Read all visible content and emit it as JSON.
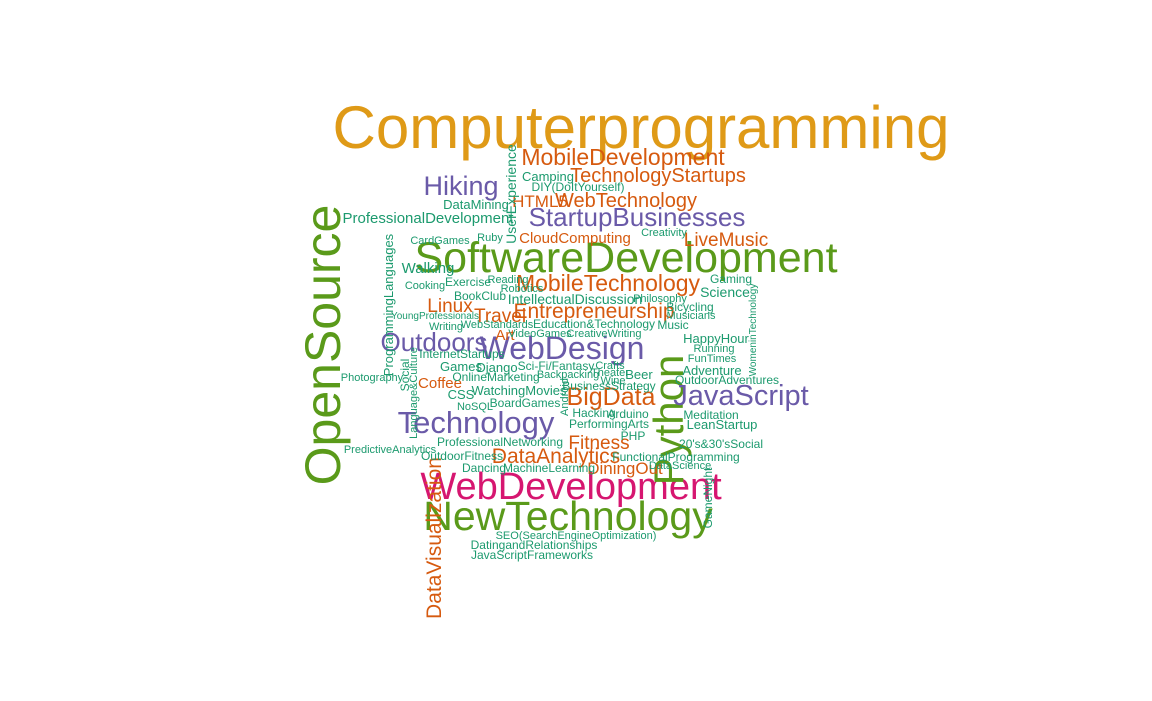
{
  "chart_data": {
    "type": "wordcloud",
    "title": "",
    "colors": {
      "gold": "#df9a17",
      "orange": "#d65a0f",
      "green": "#1c9a6e",
      "purple": "#6a5aa8",
      "olive": "#5a9a1a",
      "pink": "#d61670"
    },
    "words": [
      {
        "text": "Computerprogramming",
        "size": 60,
        "color": "#df9a17"
      },
      {
        "text": "SoftwareDevelopment",
        "size": 43,
        "color": "#5a9a1a"
      },
      {
        "text": "OpenSource",
        "size": 50,
        "color": "#5a9a1a"
      },
      {
        "text": "NewTechnology",
        "size": 41,
        "color": "#5a9a1a"
      },
      {
        "text": "WebDevelopment",
        "size": 38,
        "color": "#d61670"
      },
      {
        "text": "Python",
        "size": 42,
        "color": "#5a9a1a"
      },
      {
        "text": "WebDesign",
        "size": 32,
        "color": "#6a5aa8"
      },
      {
        "text": "Technology",
        "size": 31,
        "color": "#6a5aa8"
      },
      {
        "text": "JavaScript",
        "size": 29,
        "color": "#6a5aa8"
      },
      {
        "text": "StartupBusinesses",
        "size": 26,
        "color": "#6a5aa8"
      },
      {
        "text": "MobileDevelopment",
        "size": 23,
        "color": "#d65a0f"
      },
      {
        "text": "MobileTechnology",
        "size": 23,
        "color": "#d65a0f"
      },
      {
        "text": "Hiking",
        "size": 27,
        "color": "#6a5aa8"
      },
      {
        "text": "Outdoors",
        "size": 26,
        "color": "#6a5aa8"
      },
      {
        "text": "BigData",
        "size": 25,
        "color": "#d65a0f"
      },
      {
        "text": "DataAnalytics",
        "size": 21,
        "color": "#d65a0f"
      },
      {
        "text": "DataVisualization",
        "size": 21,
        "color": "#d65a0f"
      },
      {
        "text": "Entrepreneurship",
        "size": 21,
        "color": "#d65a0f"
      },
      {
        "text": "TechnologyStartups",
        "size": 20,
        "color": "#d65a0f"
      },
      {
        "text": "WebTechnology",
        "size": 20,
        "color": "#d65a0f"
      },
      {
        "text": "LiveMusic",
        "size": 19,
        "color": "#d65a0f"
      },
      {
        "text": "Fitness",
        "size": 19,
        "color": "#d65a0f"
      },
      {
        "text": "Linux",
        "size": 19,
        "color": "#d65a0f"
      },
      {
        "text": "Travel",
        "size": 19,
        "color": "#d65a0f"
      },
      {
        "text": "DiningOut",
        "size": 17,
        "color": "#d65a0f"
      },
      {
        "text": "HTML5",
        "size": 17,
        "color": "#d65a0f"
      },
      {
        "text": "CloudComputing",
        "size": 15,
        "color": "#d65a0f"
      },
      {
        "text": "Coffee",
        "size": 15,
        "color": "#d65a0f"
      },
      {
        "text": "Art",
        "size": 15,
        "color": "#d65a0f"
      },
      {
        "text": "ProfessionalDevelopment",
        "size": 15,
        "color": "#1c9a6e"
      },
      {
        "text": "Walking",
        "size": 15,
        "color": "#1c9a6e"
      },
      {
        "text": "Science",
        "size": 14,
        "color": "#1c9a6e"
      },
      {
        "text": "UserExperience",
        "size": 14,
        "color": "#1c9a6e"
      },
      {
        "text": "IntellectualDiscussion",
        "size": 14,
        "color": "#1c9a6e"
      },
      {
        "text": "ProgrammingLanguages",
        "size": 13,
        "color": "#1c9a6e"
      },
      {
        "text": "WatchingMovies",
        "size": 13,
        "color": "#1c9a6e"
      },
      {
        "text": "Camping",
        "size": 13,
        "color": "#1c9a6e"
      },
      {
        "text": "DataMining",
        "size": 13,
        "color": "#1c9a6e"
      },
      {
        "text": "HappyHour",
        "size": 13,
        "color": "#1c9a6e"
      },
      {
        "text": "Adventure",
        "size": 13,
        "color": "#1c9a6e"
      },
      {
        "text": "LeanStartup",
        "size": 13,
        "color": "#1c9a6e"
      },
      {
        "text": "Django",
        "size": 13,
        "color": "#1c9a6e"
      },
      {
        "text": "Games",
        "size": 13,
        "color": "#1c9a6e"
      },
      {
        "text": "CSS",
        "size": 13,
        "color": "#1c9a6e"
      },
      {
        "text": "Beer",
        "size": 13,
        "color": "#1c9a6e"
      },
      {
        "text": "DIY(DoItYourself)",
        "size": 12,
        "color": "#1c9a6e"
      },
      {
        "text": "Exercise",
        "size": 12,
        "color": "#1c9a6e"
      },
      {
        "text": "BookClub",
        "size": 12,
        "color": "#1c9a6e"
      },
      {
        "text": "Music",
        "size": 12,
        "color": "#1c9a6e"
      },
      {
        "text": "Gaming",
        "size": 12,
        "color": "#1c9a6e"
      },
      {
        "text": "Bicycling",
        "size": 12,
        "color": "#1c9a6e"
      },
      {
        "text": "Education&Technology",
        "size": 12,
        "color": "#1c9a6e"
      },
      {
        "text": "Meditation",
        "size": 12,
        "color": "#1c9a6e"
      },
      {
        "text": "PerformingArts",
        "size": 12,
        "color": "#1c9a6e"
      },
      {
        "text": "20's&30'sSocial",
        "size": 12,
        "color": "#1c9a6e"
      },
      {
        "text": "Hacking",
        "size": 12,
        "color": "#1c9a6e"
      },
      {
        "text": "Arduino",
        "size": 12,
        "color": "#1c9a6e"
      },
      {
        "text": "BoardGames",
        "size": 12,
        "color": "#1c9a6e"
      },
      {
        "text": "OutdoorAdventures",
        "size": 12,
        "color": "#1c9a6e"
      },
      {
        "text": "OutdoorFitness",
        "size": 12,
        "color": "#1c9a6e"
      },
      {
        "text": "MachineLearning",
        "size": 12,
        "color": "#1c9a6e"
      },
      {
        "text": "Dancing",
        "size": 12,
        "color": "#1c9a6e"
      },
      {
        "text": "FunctionalProgramming",
        "size": 12,
        "color": "#1c9a6e"
      },
      {
        "text": "ProfessionalNetworking",
        "size": 12,
        "color": "#1c9a6e"
      },
      {
        "text": "PredictiveAnalytics",
        "size": 11,
        "color": "#1c9a6e"
      },
      {
        "text": "Photography",
        "size": 11,
        "color": "#1c9a6e"
      },
      {
        "text": "InternetStartups",
        "size": 12,
        "color": "#1c9a6e"
      },
      {
        "text": "OnlineMarketing",
        "size": 12,
        "color": "#1c9a6e"
      },
      {
        "text": "Sci-Fi/Fantasy",
        "size": 12,
        "color": "#1c9a6e"
      },
      {
        "text": "Backpacking",
        "size": 11,
        "color": "#1c9a6e"
      },
      {
        "text": "Crafts",
        "size": 11,
        "color": "#1c9a6e"
      },
      {
        "text": "Theater",
        "size": 11,
        "color": "#1c9a6e"
      },
      {
        "text": "Wine",
        "size": 11,
        "color": "#1c9a6e"
      },
      {
        "text": "BusinessStrategy",
        "size": 12,
        "color": "#1c9a6e"
      },
      {
        "text": "NoSQL",
        "size": 11,
        "color": "#1c9a6e"
      },
      {
        "text": "PHP",
        "size": 12,
        "color": "#1c9a6e"
      },
      {
        "text": "Running",
        "size": 11,
        "color": "#1c9a6e"
      },
      {
        "text": "FunTimes",
        "size": 11,
        "color": "#1c9a6e"
      },
      {
        "text": "Musicians",
        "size": 11,
        "color": "#1c9a6e"
      },
      {
        "text": "Philosophy",
        "size": 11,
        "color": "#1c9a6e"
      },
      {
        "text": "Creativity",
        "size": 11,
        "color": "#1c9a6e"
      },
      {
        "text": "CardGames",
        "size": 11,
        "color": "#1c9a6e"
      },
      {
        "text": "Ruby",
        "size": 11,
        "color": "#1c9a6e"
      },
      {
        "text": "Reading",
        "size": 11,
        "color": "#1c9a6e"
      },
      {
        "text": "Robotics",
        "size": 11,
        "color": "#1c9a6e"
      },
      {
        "text": "Cooking",
        "size": 11,
        "color": "#1c9a6e"
      },
      {
        "text": "YoungProfessionals",
        "size": 10,
        "color": "#1c9a6e"
      },
      {
        "text": "Writing",
        "size": 11,
        "color": "#1c9a6e"
      },
      {
        "text": "WebStandards",
        "size": 11,
        "color": "#1c9a6e"
      },
      {
        "text": "VideoGames",
        "size": 11,
        "color": "#1c9a6e"
      },
      {
        "text": "CreativeWriting",
        "size": 11,
        "color": "#1c9a6e"
      },
      {
        "text": "SEO(SearchEngineOptimization)",
        "size": 11,
        "color": "#1c9a6e"
      },
      {
        "text": "DatingandRelationships",
        "size": 12,
        "color": "#1c9a6e"
      },
      {
        "text": "JavaScriptFrameworks",
        "size": 12,
        "color": "#1c9a6e"
      },
      {
        "text": "DataScience",
        "size": 11,
        "color": "#1c9a6e"
      },
      {
        "text": "GameNight",
        "size": 12,
        "color": "#1c9a6e"
      },
      {
        "text": "WomeninTechnology",
        "size": 10,
        "color": "#1c9a6e"
      },
      {
        "text": "Social",
        "size": 12,
        "color": "#1c9a6e"
      },
      {
        "text": "Language&Culture",
        "size": 11,
        "color": "#1c9a6e"
      },
      {
        "text": "Android",
        "size": 11,
        "color": "#1c9a6e"
      }
    ]
  }
}
